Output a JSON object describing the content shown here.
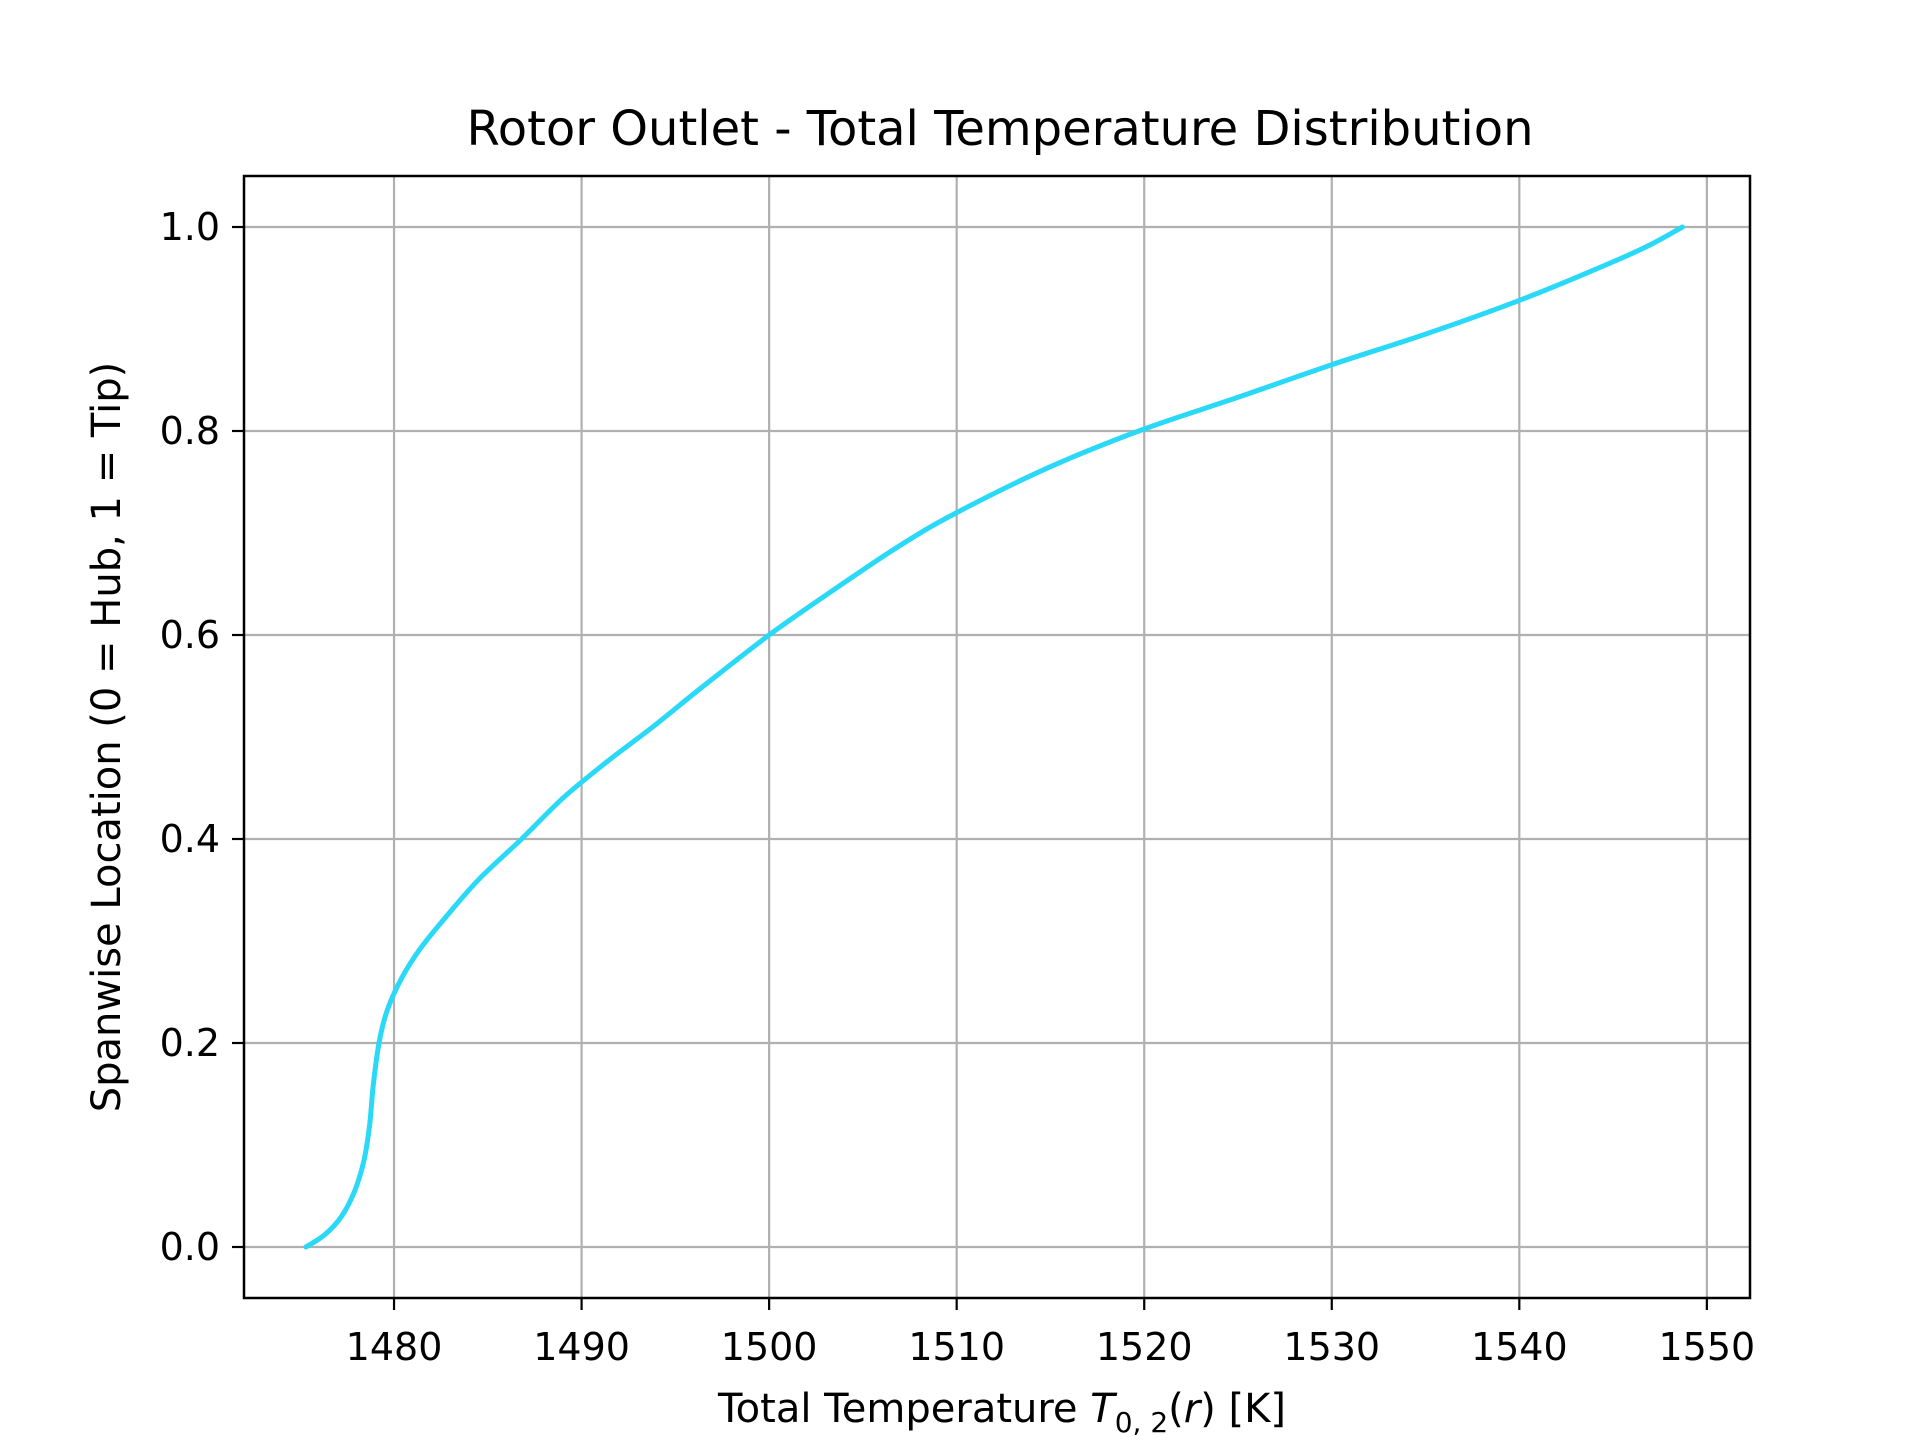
{
  "chart_data": {
    "type": "line",
    "title": "Rotor Outlet - Total Temperature Distribution",
    "xlabel": "Total Temperature T0,2(r) [K]",
    "xlabel_parts": {
      "prefix": "Total Temperature ",
      "symbol": "T",
      "subscript": "0, 2",
      "arg_open": "(",
      "arg": "r",
      "suffix": ") [K]"
    },
    "ylabel": "Spanwise Location (0 = Hub, 1 = Tip)",
    "xlim": [
      1472,
      1552.3
    ],
    "ylim": [
      -0.05,
      1.05
    ],
    "xticks": [
      1480,
      1490,
      1500,
      1510,
      1520,
      1530,
      1540,
      1550
    ],
    "xtick_labels": [
      "1480",
      "1490",
      "1500",
      "1510",
      "1520",
      "1530",
      "1540",
      "1550"
    ],
    "yticks": [
      0.0,
      0.2,
      0.4,
      0.6,
      0.8,
      1.0
    ],
    "ytick_labels": [
      "0.0",
      "0.2",
      "0.4",
      "0.6",
      "0.8",
      "1.0"
    ],
    "grid": true,
    "series": [
      {
        "color": "#29d9f7",
        "points": [
          [
            1475.3,
            0.0
          ],
          [
            1476.3,
            0.012
          ],
          [
            1477.2,
            0.03
          ],
          [
            1477.9,
            0.055
          ],
          [
            1478.4,
            0.085
          ],
          [
            1478.7,
            0.12
          ],
          [
            1478.9,
            0.16
          ],
          [
            1479.2,
            0.2
          ],
          [
            1479.6,
            0.23
          ],
          [
            1480.3,
            0.26
          ],
          [
            1481.3,
            0.29
          ],
          [
            1482.6,
            0.32
          ],
          [
            1484.5,
            0.36
          ],
          [
            1486.8,
            0.4
          ],
          [
            1489.0,
            0.44
          ],
          [
            1491.3,
            0.475
          ],
          [
            1493.8,
            0.51
          ],
          [
            1496.5,
            0.55
          ],
          [
            1500.0,
            0.6
          ],
          [
            1503.5,
            0.645
          ],
          [
            1507.0,
            0.688
          ],
          [
            1510.0,
            0.72
          ],
          [
            1515.0,
            0.765
          ],
          [
            1520.0,
            0.802
          ],
          [
            1525.0,
            0.833
          ],
          [
            1530.0,
            0.865
          ],
          [
            1535.0,
            0.895
          ],
          [
            1540.0,
            0.928
          ],
          [
            1544.0,
            0.958
          ],
          [
            1546.7,
            0.98
          ],
          [
            1548.7,
            1.0
          ]
        ]
      }
    ]
  }
}
